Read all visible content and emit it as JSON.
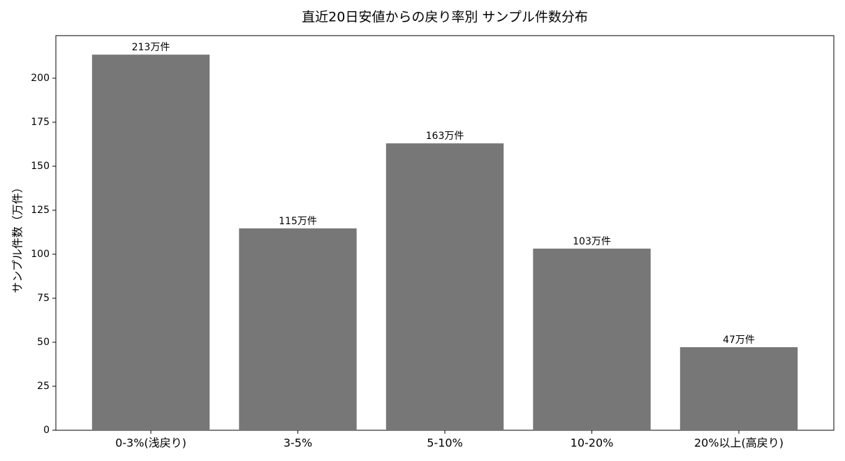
{
  "chart_data": {
    "type": "bar",
    "title": "直近20日安値からの戻り率別 サンプル件数分布",
    "ylabel": "サンプル件数（万件）",
    "categories": [
      "0-3%(浅戻り)",
      "3-5%",
      "5-10%",
      "10-20%",
      "20%以上(高戻り)"
    ],
    "values": [
      213.4,
      114.7,
      163,
      103.2,
      47.2
    ],
    "value_labels": [
      "213万件",
      "115万件",
      "163万件",
      "103万件",
      "47万件"
    ],
    "color": "#777777",
    "ylim": [
      0,
      224.2
    ],
    "yticks": [
      0,
      25,
      50,
      75,
      100,
      125,
      150,
      175,
      200
    ]
  }
}
